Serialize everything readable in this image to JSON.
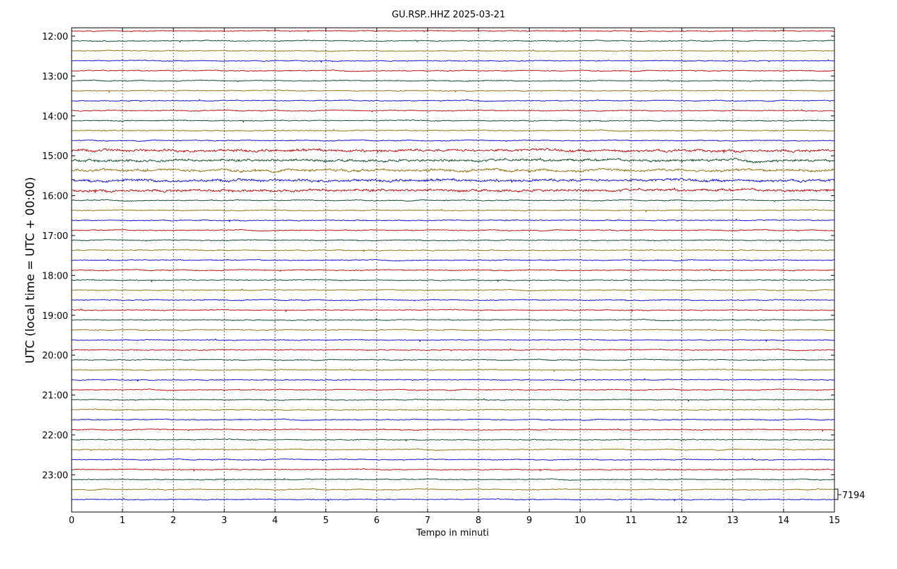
{
  "chart_data": {
    "type": "line",
    "title": "GU.RSP..HHZ 2025-03-21",
    "xlabel": "Tempo in minuti",
    "ylabel": "UTC (local time = UTC + 00:00)",
    "xlim": [
      0,
      15
    ],
    "x_ticks": [
      0,
      1,
      2,
      3,
      4,
      5,
      6,
      7,
      8,
      9,
      10,
      11,
      12,
      13,
      14,
      15
    ],
    "grid": "vertical dotted",
    "traces_per_hour": 4,
    "start_hour": 12,
    "trace_count": 48,
    "y_ticks": [
      "12:00",
      "13:00",
      "14:00",
      "15:00",
      "16:00",
      "17:00",
      "18:00",
      "19:00",
      "20:00",
      "21:00",
      "22:00",
      "23:00"
    ],
    "trace_colors": [
      "#b30000",
      "#00401a",
      "#8a6a00",
      "#0000cc"
    ],
    "scale_label": "7194",
    "noisy_hours": [
      "15:00",
      "15:15",
      "15:30",
      "15:45",
      "16:00"
    ]
  }
}
